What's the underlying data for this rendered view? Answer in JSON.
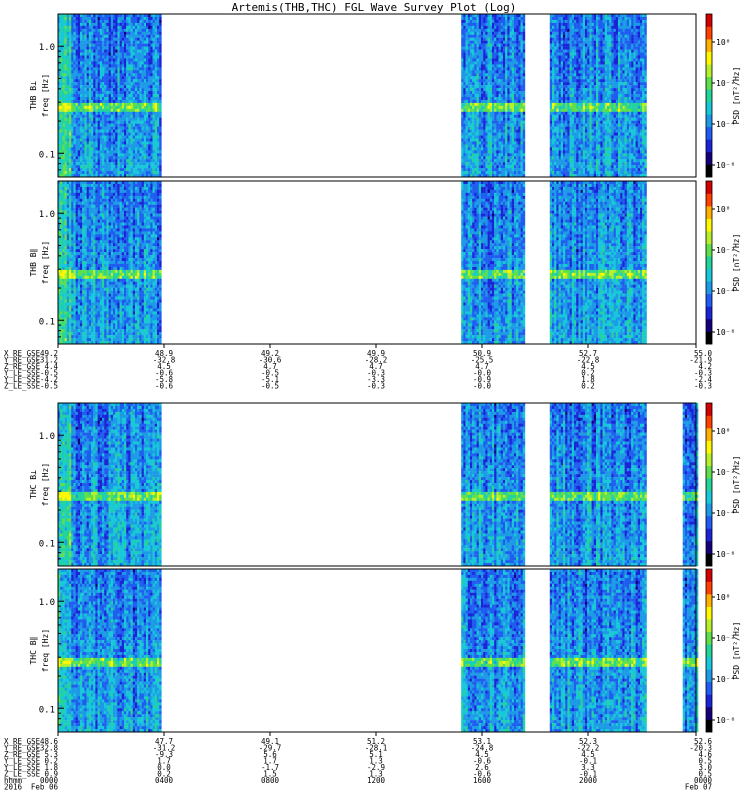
{
  "title": "Artemis(THB,THC) FGL Wave Survey Plot (Log)",
  "colors": {
    "scale": [
      "#000000",
      "#14007a",
      "#1a24d6",
      "#1f5cf0",
      "#1c9ae6",
      "#17c8d8",
      "#22d39a",
      "#5fe04b",
      "#b7f02a",
      "#fff800",
      "#ffb000",
      "#ff4000",
      "#d20000"
    ],
    "frame": "#000000",
    "background": "#ffffff"
  },
  "chart_data": [
    {
      "type": "heatmap",
      "panel": "THB Bperp",
      "ylabel": "THB B⊥",
      "ylabel2": "freq [Hz]",
      "yscale": "log",
      "yticks": [
        1.0,
        0.1
      ],
      "yticklabels": [
        "1.0",
        "0.1"
      ],
      "ylim": [
        0.06,
        2.0
      ],
      "colorbar_label": "PSD [nT²/Hz]",
      "colorbar_ticks": [
        "10⁰",
        "10⁻²",
        "10⁻⁴",
        "10⁻⁶"
      ],
      "data_segments_hhmm": [
        [
          "0000",
          "0352"
        ],
        [
          "1510",
          "1734"
        ],
        [
          "1830",
          "2206"
        ]
      ],
      "bright_band_hz": 0.27
    },
    {
      "type": "heatmap",
      "panel": "THB Bpar",
      "ylabel": "THB B∥",
      "ylabel2": "freq [Hz]",
      "yscale": "log",
      "yticks": [
        1.0,
        0.1
      ],
      "yticklabels": [
        "1.0",
        "0.1"
      ],
      "ylim": [
        0.06,
        2.0
      ],
      "colorbar_label": "PSD [nT²/Hz]",
      "colorbar_ticks": [
        "10⁰",
        "10⁻²",
        "10⁻⁴",
        "10⁻⁶"
      ],
      "data_segments_hhmm": [
        [
          "0000",
          "0352"
        ],
        [
          "1510",
          "1734"
        ],
        [
          "1830",
          "2206"
        ]
      ],
      "bright_band_hz": 0.27
    },
    {
      "type": "heatmap",
      "panel": "THC Bperp",
      "ylabel": "THC B⊥",
      "ylabel2": "freq [Hz]",
      "yscale": "log",
      "yticks": [
        1.0,
        0.1
      ],
      "yticklabels": [
        "1.0",
        "0.1"
      ],
      "ylim": [
        0.06,
        2.0
      ],
      "colorbar_label": "PSD [nT²/Hz]",
      "colorbar_ticks": [
        "10⁰",
        "10⁻²",
        "10⁻⁴",
        "10⁻⁶"
      ],
      "data_segments_hhmm": [
        [
          "0000",
          "0352"
        ],
        [
          "1510",
          "1734"
        ],
        [
          "1830",
          "2206"
        ],
        [
          "2330",
          "2400"
        ]
      ],
      "bright_band_hz": 0.27
    },
    {
      "type": "heatmap",
      "panel": "THC Bpar",
      "ylabel": "THC B∥",
      "ylabel2": "freq [Hz]",
      "yscale": "log",
      "yticks": [
        1.0,
        0.1
      ],
      "yticklabels": [
        "1.0",
        "0.1"
      ],
      "ylim": [
        0.06,
        2.0
      ],
      "colorbar_label": "PSD [nT²/Hz]",
      "colorbar_ticks": [
        "10⁰",
        "10⁻²",
        "10⁻⁴",
        "10⁻⁶"
      ],
      "data_segments_hhmm": [
        [
          "0000",
          "0352"
        ],
        [
          "1510",
          "1734"
        ],
        [
          "1830",
          "2206"
        ],
        [
          "2330",
          "2400"
        ]
      ],
      "bright_band_hz": 0.27
    }
  ],
  "ephemeris_thb": {
    "labels": [
      "X_RE_GSE",
      "Y_RE_GSE",
      "Z_RE_GSE",
      "Y_LE_SSE",
      "Y_LE_SSE",
      "Z_LE_SSE"
    ],
    "columns": [
      [
        "49.2",
        "-31.2",
        "4.4",
        "-0.5",
        "-4.2",
        "-0.5"
      ],
      [
        "48.9",
        "-32.8",
        "4.5",
        "-0.6",
        "-5.8",
        "-0.6"
      ],
      [
        "49.2",
        "-30.6",
        "4.7",
        "-0.5",
        "-5.1",
        "-0.5"
      ],
      [
        "49.9",
        "-28.2",
        "4.7",
        "-0.3",
        "-3.3",
        "-0.3"
      ],
      [
        "50.9",
        "-25.5",
        "4.7",
        "-0.0",
        "-0.9",
        "-0.0"
      ],
      [
        "52.7",
        "-22.8",
        "4.5",
        "0.2",
        "1.8",
        "0.2"
      ],
      [
        "55.0",
        "-21.9",
        "4.2",
        "-0.3",
        "-2.4",
        "-0.3"
      ]
    ]
  },
  "ephemeris_thc": {
    "labels": [
      "X_RE_GSE",
      "Y_RE_GSE",
      "Z_RE_GSE",
      "Y_LE_SSE",
      "Y_LE_SSE",
      "Z_LE_SSE",
      "hhmm",
      "2016"
    ],
    "columns": [
      [
        "48.6",
        "-32.8",
        "5.3",
        "0.2",
        "1.8",
        "0.9",
        "0000",
        "Feb 06"
      ],
      [
        "47.7",
        "-31.2",
        "-9.3",
        "1.7",
        "0.0",
        "0.2",
        "0400",
        ""
      ],
      [
        "49.1",
        "-29.7",
        "5.6",
        "1.7",
        "-1.7",
        "1.5",
        "0800",
        ""
      ],
      [
        "51.2",
        "-28.1",
        "5.1",
        "1.3",
        "-2.9",
        "1.3",
        "1200",
        ""
      ],
      [
        "53.1",
        "-24.8",
        "4.5",
        "-0.6",
        "2.6",
        "-0.6",
        "1600",
        ""
      ],
      [
        "52.3",
        "-22.2",
        "4.5",
        "-0.1",
        "3.3",
        "-0.1",
        "2000",
        ""
      ],
      [
        "52.6",
        "-20.3",
        "4.6",
        "0.5",
        "3.0",
        "0.5",
        "0000",
        "Feb 07"
      ]
    ]
  }
}
